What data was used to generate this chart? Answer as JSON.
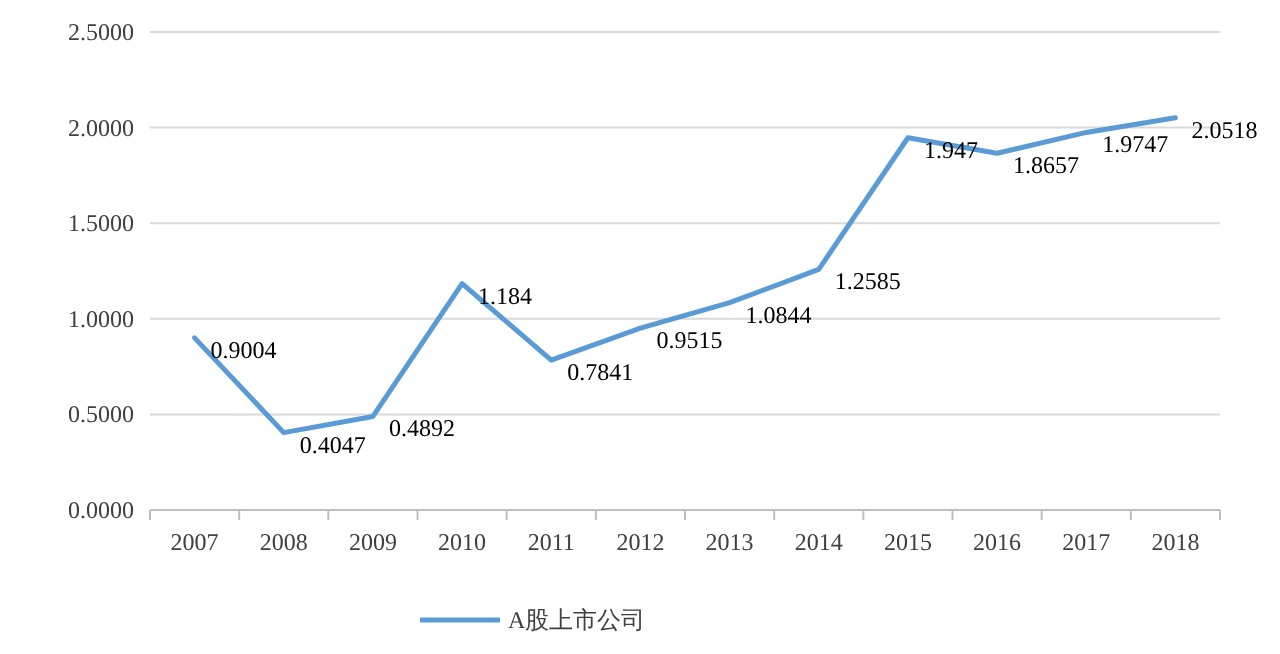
{
  "chart_data": {
    "type": "line",
    "categories": [
      "2007",
      "2008",
      "2009",
      "2010",
      "2011",
      "2012",
      "2013",
      "2014",
      "2015",
      "2016",
      "2017",
      "2018"
    ],
    "series": [
      {
        "name": "A股上市公司",
        "color": "#5b9bd5",
        "values": [
          0.9004,
          0.4047,
          0.4892,
          1.184,
          0.7841,
          0.9515,
          1.0844,
          1.2585,
          1.947,
          1.8657,
          1.9747,
          2.0518
        ]
      }
    ],
    "ylim": [
      0,
      2.5
    ],
    "yticks": [
      {
        "value": 0,
        "label": "0.0000"
      },
      {
        "value": 0.5,
        "label": "0.5000"
      },
      {
        "value": 1,
        "label": "1.0000"
      },
      {
        "value": 1.5,
        "label": "1.5000"
      },
      {
        "value": 2,
        "label": "2.0000"
      },
      {
        "value": 2.5,
        "label": "2.5000"
      }
    ],
    "grid": "y",
    "legend": "bottom",
    "data_labels": true,
    "marker": "none",
    "line_style": "solid"
  }
}
